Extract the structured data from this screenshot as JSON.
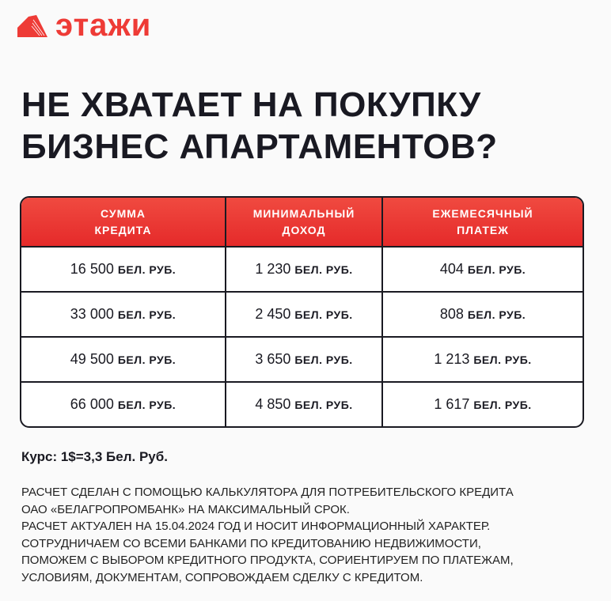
{
  "brand": {
    "name": "этажи",
    "color": "#ee3b36"
  },
  "title": [
    "НЕ ХВАТАЕТ НА ПОКУПКУ",
    "БИЗНЕС АПАРТАМЕНТОВ?"
  ],
  "table": {
    "headers": [
      "СУММА\nКРЕДИТА",
      "МИНИМАЛЬНЫЙ\nДОХОД",
      "ЕЖЕМЕСЯЧНЫЙ\nПЛАТЕЖ"
    ],
    "currency": "БЕЛ. РУБ.",
    "rows": [
      [
        "16 500",
        "1 230",
        "404"
      ],
      [
        "33 000",
        "2 450",
        "808"
      ],
      [
        "49 500",
        "3 650",
        "1 213"
      ],
      [
        "66 000",
        "4 850",
        "1 617"
      ]
    ]
  },
  "rate": "Курс: 1$=3,3 Бел. Руб.",
  "notes": [
    "РАСЧЕТ СДЕЛАН С ПОМОЩЬЮ КАЛЬКУЛЯТОРА ДЛЯ ПОТРЕБИТЕЛЬСКОГО КРЕДИТА",
    "ОАО «БЕЛАГРОПРОМБАНК» НА МАКСИМАЛЬНЫЙ СРОК.",
    "РАСЧЕТ АКТУАЛЕН НА 15.04.2024 ГОД И НОСИТ ИНФОРМАЦИОННЫЙ ХАРАКТЕР.",
    "СОТРУДНИЧАЕМ СО ВСЕМИ БАНКАМИ ПО КРЕДИТОВАНИЮ НЕДВИЖИМОСТИ,",
    "ПОМОЖЕМ С ВЫБОРОМ КРЕДИТНОГО ПРОДУКТА, СОРИЕНТИРУЕМ ПО ПЛАТЕЖАМ,",
    "УСЛОВИЯМ, ДОКУМЕНТАМ, СОПРОВОЖДАЕМ СДЕЛКУ С КРЕДИТОМ."
  ]
}
